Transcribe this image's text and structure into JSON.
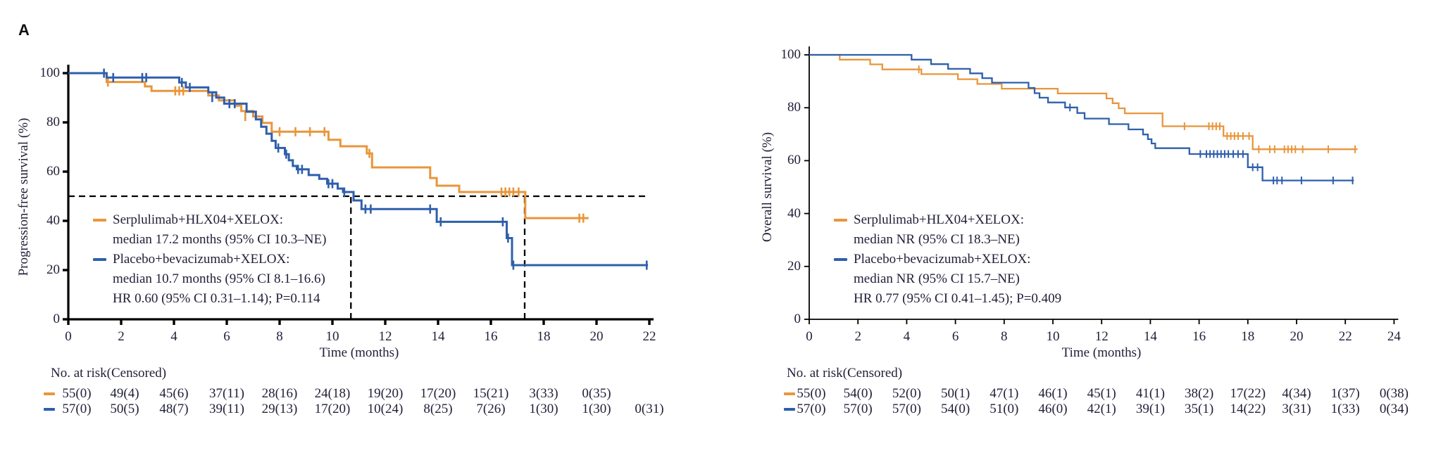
{
  "panel_label": "A",
  "chart_data": [
    {
      "type": "line",
      "km_panel": "progression-free-survival",
      "title": "",
      "ylabel": "Progression-free survival (%)",
      "xlabel": "Time (months)",
      "xlim": [
        0,
        22
      ],
      "ylim": [
        0,
        100
      ],
      "xticks": [
        0,
        2,
        4,
        6,
        8,
        10,
        12,
        14,
        16,
        18,
        20,
        22
      ],
      "yticks": [
        0,
        20,
        40,
        60,
        80,
        100
      ],
      "grid": false,
      "legend_position": "lower-left-inside",
      "median_dashed": {
        "y": 50,
        "x_end": 22,
        "verticals": [
          10.7,
          17.28
        ]
      },
      "series": [
        {
          "name": "Serplulimab+HLX04+XELOX",
          "color": "#E8963B",
          "steps": [
            [
              1.45,
              96.4
            ],
            [
              2.9,
              94.6
            ],
            [
              3.15,
              92.8
            ],
            [
              5.3,
              90.9
            ],
            [
              5.7,
              88.9
            ],
            [
              6.3,
              86.8
            ],
            [
              6.55,
              84.6
            ],
            [
              7.0,
              82.4
            ],
            [
              7.35,
              79.8
            ],
            [
              7.7,
              76.2
            ],
            [
              9.85,
              72.9
            ],
            [
              10.3,
              70.3
            ],
            [
              11.3,
              67.4
            ],
            [
              11.5,
              61.7
            ],
            [
              13.7,
              57.4
            ],
            [
              13.95,
              54.3
            ],
            [
              14.8,
              51.7
            ],
            [
              17.3,
              41.1
            ]
          ],
          "end_t": 19.7,
          "censors": [
            [
              1.5,
              96.4
            ],
            [
              4.05,
              92.8
            ],
            [
              4.2,
              92.8
            ],
            [
              4.35,
              92.8
            ],
            [
              6.7,
              82.4
            ],
            [
              8.0,
              76.2
            ],
            [
              8.6,
              76.2
            ],
            [
              9.15,
              76.2
            ],
            [
              9.7,
              76.2
            ],
            [
              11.4,
              67.4
            ],
            [
              16.4,
              51.7
            ],
            [
              16.55,
              51.7
            ],
            [
              16.7,
              51.7
            ],
            [
              16.85,
              51.7
            ],
            [
              17.05,
              51.7
            ],
            [
              19.35,
              41.1
            ],
            [
              19.5,
              41.1
            ]
          ]
        },
        {
          "name": "Placebo+bevacizumab+XELOX",
          "color": "#2F5FAC",
          "steps": [
            [
              1.45,
              98.2
            ],
            [
              4.2,
              96.2
            ],
            [
              4.45,
              94.2
            ],
            [
              5.3,
              92.2
            ],
            [
              5.6,
              90.1
            ],
            [
              5.9,
              87.6
            ],
            [
              6.75,
              84.3
            ],
            [
              7.1,
              81.2
            ],
            [
              7.3,
              78.2
            ],
            [
              7.5,
              75.4
            ],
            [
              7.7,
              72.5
            ],
            [
              7.85,
              69.6
            ],
            [
              8.2,
              67.1
            ],
            [
              8.35,
              64.6
            ],
            [
              8.5,
              62.3
            ],
            [
              8.65,
              60.9
            ],
            [
              9.1,
              58.6
            ],
            [
              9.5,
              57.1
            ],
            [
              9.8,
              55.1
            ],
            [
              10.2,
              53.1
            ],
            [
              10.4,
              51.7
            ],
            [
              10.8,
              48.3
            ],
            [
              11.1,
              44.8
            ],
            [
              13.95,
              39.6
            ],
            [
              16.6,
              33.0
            ],
            [
              16.8,
              22.0
            ]
          ],
          "end_t": 21.95,
          "censors": [
            [
              1.35,
              100
            ],
            [
              1.7,
              98.2
            ],
            [
              2.8,
              98.2
            ],
            [
              2.95,
              98.2
            ],
            [
              4.3,
              96.2
            ],
            [
              4.6,
              94.2
            ],
            [
              5.45,
              90.1
            ],
            [
              6.1,
              87.6
            ],
            [
              6.3,
              87.6
            ],
            [
              7.95,
              69.6
            ],
            [
              8.25,
              67.1
            ],
            [
              8.7,
              60.9
            ],
            [
              8.85,
              60.9
            ],
            [
              9.85,
              55.1
            ],
            [
              10.0,
              55.1
            ],
            [
              10.45,
              51.7
            ],
            [
              11.25,
              44.8
            ],
            [
              11.45,
              44.8
            ],
            [
              13.7,
              44.8
            ],
            [
              14.1,
              39.6
            ],
            [
              16.45,
              39.6
            ],
            [
              16.65,
              33.0
            ],
            [
              16.85,
              22.0
            ],
            [
              21.9,
              22.0
            ]
          ]
        }
      ],
      "legend": {
        "items": [
          {
            "label": "Serplulimab+HLX04+XELOX:",
            "detail": "median 17.2 months (95% CI 10.3–NE)",
            "stats": ""
          },
          {
            "label": "Placebo+bevacizumab+XELOX:",
            "detail": "median 10.7 months (95% CI 8.1–16.6)",
            "stats": "HR 0.60 (95% CI 0.31–1.14); P=0.114"
          }
        ]
      },
      "risk_table": {
        "header": "No. at risk(Censored)",
        "rows": [
          {
            "series": "Serplulimab+HLX04+XELOX",
            "values": [
              "55(0)",
              "49(4)",
              "45(6)",
              "37(11)",
              "28(16)",
              "24(18)",
              "19(20)",
              "17(20)",
              "15(21)",
              "3(33)",
              "0(35)"
            ]
          },
          {
            "series": "Placebo+bevacizumab+XELOX",
            "values": [
              "57(0)",
              "50(5)",
              "48(7)",
              "39(11)",
              "29(13)",
              "17(20)",
              "10(24)",
              "8(25)",
              "7(26)",
              "1(30)",
              "1(30)",
              "0(31)"
            ]
          }
        ]
      }
    },
    {
      "type": "line",
      "km_panel": "overall-survival",
      "title": "",
      "ylabel": "Overall survival (%)",
      "xlabel": "Time (months)",
      "xlim": [
        0,
        24
      ],
      "ylim": [
        0,
        100
      ],
      "xticks": [
        0,
        2,
        4,
        6,
        8,
        10,
        12,
        14,
        16,
        18,
        20,
        22,
        24
      ],
      "yticks": [
        0,
        20,
        40,
        60,
        80,
        100
      ],
      "grid": false,
      "legend_position": "lower-left-inside",
      "median_dashed": null,
      "series": [
        {
          "name": "Serplulimab+HLX04+XELOX",
          "color": "#E8963B",
          "steps": [
            [
              1.25,
              98.2
            ],
            [
              2.5,
              96.4
            ],
            [
              3.0,
              94.5
            ],
            [
              4.6,
              92.7
            ],
            [
              6.1,
              90.8
            ],
            [
              6.9,
              89.0
            ],
            [
              7.9,
              87.2
            ],
            [
              10.2,
              85.4
            ],
            [
              12.2,
              83.5
            ],
            [
              12.45,
              81.7
            ],
            [
              12.7,
              79.8
            ],
            [
              12.95,
              77.9
            ],
            [
              14.5,
              73.0
            ],
            [
              17.0,
              69.3
            ],
            [
              18.2,
              64.3
            ]
          ],
          "end_t": 22.5,
          "censors": [
            [
              4.5,
              94.5
            ],
            [
              15.4,
              73.0
            ],
            [
              16.4,
              73.0
            ],
            [
              16.55,
              73.0
            ],
            [
              16.7,
              73.0
            ],
            [
              16.85,
              73.0
            ],
            [
              17.15,
              69.3
            ],
            [
              17.3,
              69.3
            ],
            [
              17.45,
              69.3
            ],
            [
              17.6,
              69.3
            ],
            [
              17.8,
              69.3
            ],
            [
              18.05,
              69.3
            ],
            [
              18.45,
              64.3
            ],
            [
              18.9,
              64.3
            ],
            [
              19.1,
              64.3
            ],
            [
              19.5,
              64.3
            ],
            [
              19.65,
              64.3
            ],
            [
              19.8,
              64.3
            ],
            [
              19.95,
              64.3
            ],
            [
              20.25,
              64.3
            ],
            [
              21.3,
              64.3
            ],
            [
              22.4,
              64.3
            ]
          ]
        },
        {
          "name": "Placebo+bevacizumab+XELOX",
          "color": "#2F5FAC",
          "steps": [
            [
              4.2,
              98.2
            ],
            [
              5.0,
              96.5
            ],
            [
              5.7,
              94.7
            ],
            [
              6.6,
              93.0
            ],
            [
              7.1,
              91.2
            ],
            [
              7.5,
              89.5
            ],
            [
              9.0,
              87.5
            ],
            [
              9.25,
              85.5
            ],
            [
              9.45,
              83.8
            ],
            [
              9.8,
              82.0
            ],
            [
              10.5,
              80.1
            ],
            [
              11.0,
              78.0
            ],
            [
              11.3,
              75.9
            ],
            [
              12.3,
              73.8
            ],
            [
              13.1,
              71.8
            ],
            [
              13.7,
              69.9
            ],
            [
              13.9,
              68.1
            ],
            [
              14.05,
              66.5
            ],
            [
              14.2,
              64.7
            ],
            [
              15.6,
              62.5
            ],
            [
              18.0,
              57.5
            ],
            [
              18.6,
              52.5
            ]
          ],
          "end_t": 22.35,
          "censors": [
            [
              10.7,
              80.1
            ],
            [
              16.05,
              62.5
            ],
            [
              16.3,
              62.5
            ],
            [
              16.45,
              62.5
            ],
            [
              16.6,
              62.5
            ],
            [
              16.75,
              62.5
            ],
            [
              16.9,
              62.5
            ],
            [
              17.05,
              62.5
            ],
            [
              17.2,
              62.5
            ],
            [
              17.4,
              62.5
            ],
            [
              17.6,
              62.5
            ],
            [
              17.8,
              62.5
            ],
            [
              18.2,
              57.5
            ],
            [
              18.4,
              57.5
            ],
            [
              19.05,
              52.5
            ],
            [
              19.2,
              52.5
            ],
            [
              19.4,
              52.5
            ],
            [
              20.2,
              52.5
            ],
            [
              21.5,
              52.5
            ],
            [
              22.3,
              52.5
            ]
          ]
        }
      ],
      "legend": {
        "items": [
          {
            "label": "Serplulimab+HLX04+XELOX:",
            "detail": "median NR (95% CI 18.3–NE)",
            "stats": ""
          },
          {
            "label": "Placebo+bevacizumab+XELOX:",
            "detail": "median NR (95% CI 15.7–NE)",
            "stats": "HR 0.77 (95% CI 0.41–1.45); P=0.409"
          }
        ]
      },
      "risk_table": {
        "header": "No. at risk(Censored)",
        "rows": [
          {
            "series": "Serplulimab+HLX04+XELOX",
            "values": [
              "55(0)",
              "54(0)",
              "52(0)",
              "50(1)",
              "47(1)",
              "46(1)",
              "45(1)",
              "41(1)",
              "38(2)",
              "17(22)",
              "4(34)",
              "1(37)",
              "0(38)"
            ]
          },
          {
            "series": "Placebo+bevacizumab+XELOX",
            "values": [
              "57(0)",
              "57(0)",
              "57(0)",
              "54(0)",
              "51(0)",
              "46(0)",
              "42(1)",
              "39(1)",
              "35(1)",
              "14(22)",
              "3(31)",
              "1(33)",
              "0(34)"
            ]
          }
        ]
      }
    }
  ]
}
